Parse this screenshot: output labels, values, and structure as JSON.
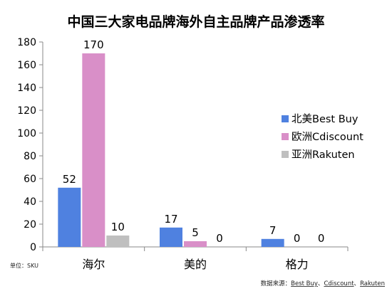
{
  "chart_data": {
    "type": "bar",
    "title": "中国三大家电品牌海外自主品牌产品渗透率",
    "categories": [
      "海尔",
      "美的",
      "格力"
    ],
    "series": [
      {
        "name": "北美Best Buy",
        "values": [
          52,
          17,
          7
        ],
        "color": "#4f81e0"
      },
      {
        "name": "欧洲Cdiscount",
        "values": [
          170,
          5,
          0
        ],
        "color": "#d98fc8"
      },
      {
        "name": "亚洲Rakuten",
        "values": [
          10,
          0,
          0
        ],
        "color": "#bfbfbf"
      }
    ],
    "ylim": [
      0,
      180
    ],
    "yticks": [
      0,
      20,
      40,
      60,
      80,
      100,
      120,
      140,
      160,
      180
    ],
    "grid": false,
    "legend_position": "right",
    "unit_note": "单位：SKU",
    "source_note": {
      "prefix": "数据来源：",
      "items": [
        "Best Buy",
        "Cdiscount",
        "Rakuten"
      ],
      "separator": "、"
    }
  }
}
